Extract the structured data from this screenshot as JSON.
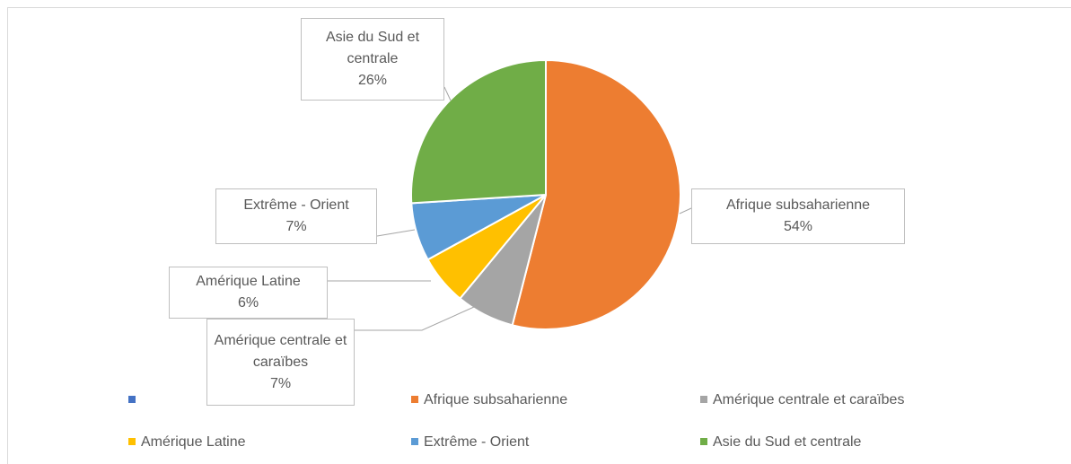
{
  "chart_data": {
    "type": "pie",
    "categories": [
      null,
      "Afrique subsaharienne",
      "Amérique centrale et caraïbes",
      "Amérique Latine",
      "Extrême - Orient",
      "Asie du Sud et centrale"
    ],
    "values": [
      0,
      54,
      7,
      6,
      7,
      26
    ],
    "value_labels": [
      null,
      "54%",
      "7%",
      "6%",
      "7%",
      "26%"
    ],
    "colors": [
      "#4472c4",
      "#ed7d31",
      "#a5a5a5",
      "#ffc000",
      "#5b9bd5",
      "#70ad47"
    ],
    "legend": "bottom"
  }
}
